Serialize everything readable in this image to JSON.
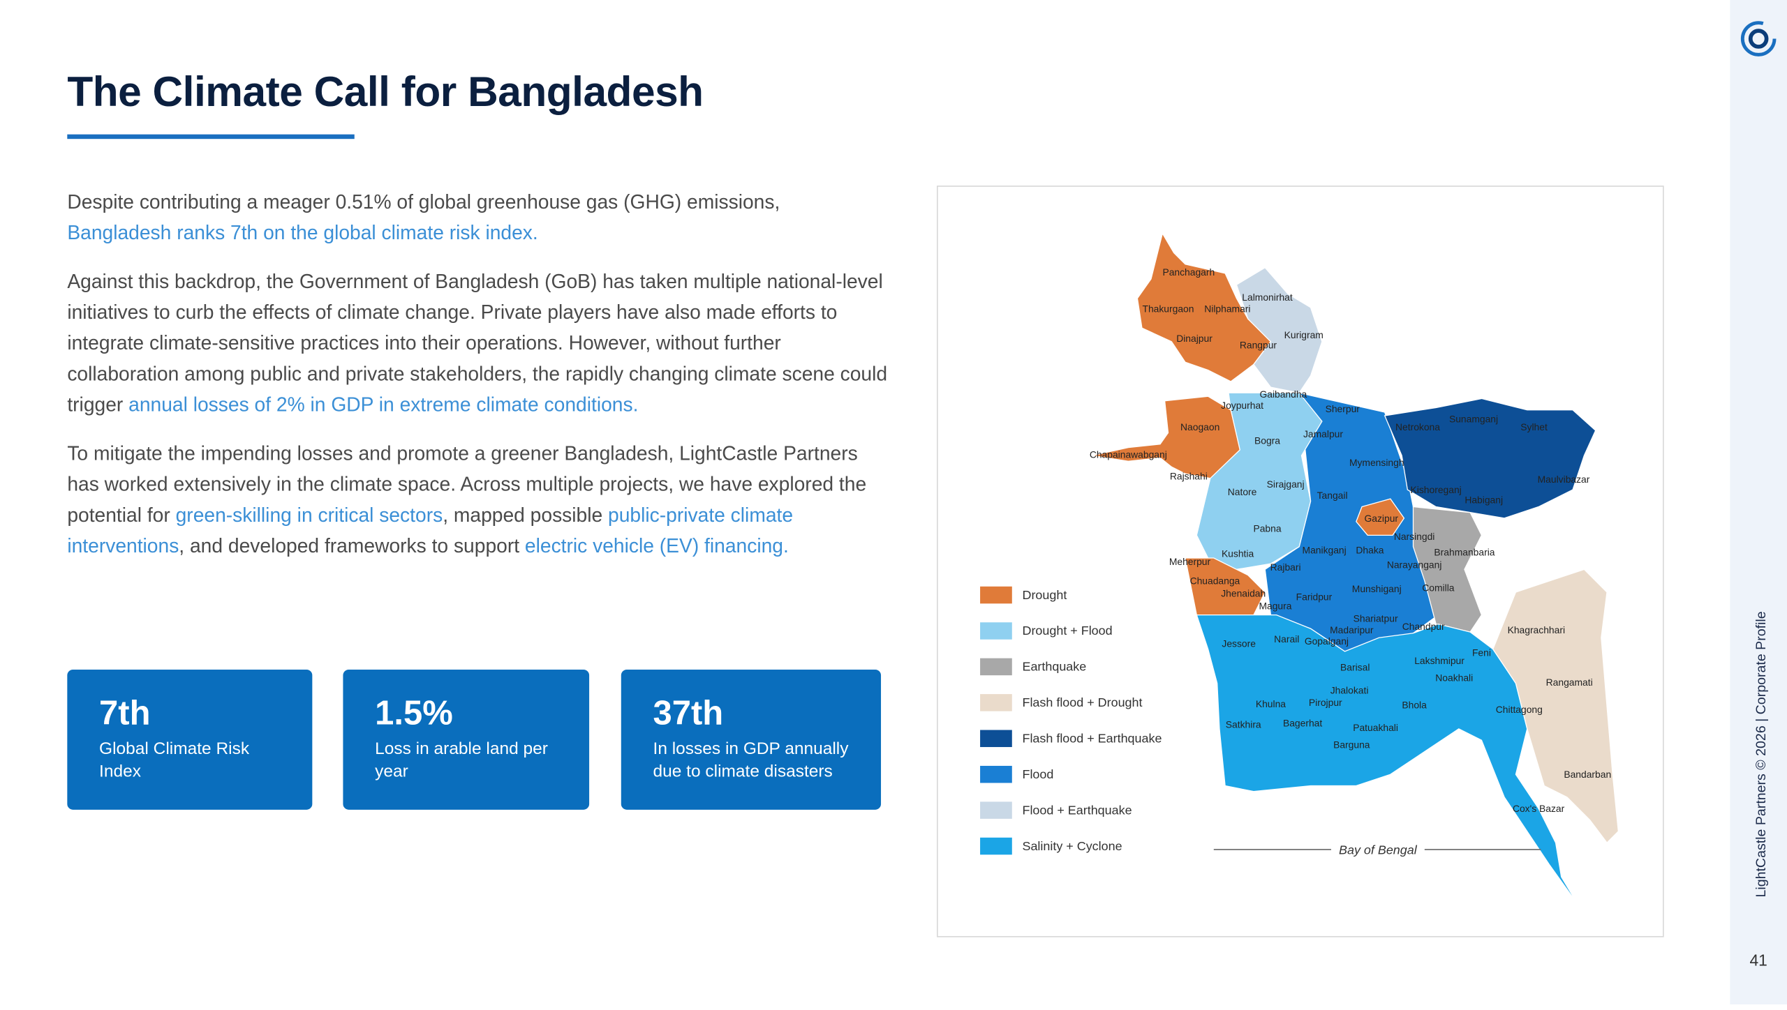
{
  "header": {
    "title": "The Climate Call for Bangladesh"
  },
  "body": {
    "paragraphs": [
      [
        "Despite contributing a meager 0.51% of global greenhouse gas (GHG) emissions, ",
        "Bangladesh ranks 7th on the global climate risk index."
      ],
      [
        "Against this backdrop, the Government of Bangladesh (GoB) has taken multiple national-level initiatives to curb the effects of climate change. Private players have also made efforts to integrate climate-sensitive practices into their operations. However, without further collaboration among public and private stakeholders, the rapidly changing climate scene could trigger ",
        "annual losses of 2% in GDP in extreme climate conditions."
      ],
      [
        "To mitigate the impending losses and promote a greener Bangladesh, LightCastle Partners has worked extensively in the climate space. Across multiple projects, we have explored the potential for ",
        "green-skilling in critical sectors",
        ", mapped possible ",
        "public-private climate interventions",
        ", and developed frameworks to support ",
        "electric vehicle (EV) financing."
      ]
    ]
  },
  "stats": [
    {
      "value": "7th",
      "label": "Global Climate Risk Index"
    },
    {
      "value": "1.5%",
      "label": "Loss in arable land per year"
    },
    {
      "value": "37th",
      "label": "In losses in GDP annually due to climate disasters"
    }
  ],
  "map": {
    "legend": [
      {
        "name": "Drought",
        "color": "#e07b39"
      },
      {
        "name": "Drought + Flood",
        "color": "#8fd0f0"
      },
      {
        "name": "Earthquake",
        "color": "#a8a8a8"
      },
      {
        "name": "Flash flood + Drought",
        "color": "#eadbcb"
      },
      {
        "name": "Flash flood + Earthquake",
        "color": "#0d4f96"
      },
      {
        "name": "Flood",
        "color": "#1a7fd4"
      },
      {
        "name": "Flood + Earthquake",
        "color": "#c9d8e6"
      },
      {
        "name": "Salinity + Cyclone",
        "color": "#1ba5e6"
      }
    ],
    "sea_label": "Bay of Bengal",
    "districts": [
      "Panchagarh",
      "Lalmonirhat",
      "Thakurgaon",
      "Nilphamari",
      "Kurigram",
      "Dinajpur",
      "Rangpur",
      "Gaibandha",
      "Joypurhat",
      "Sherpur",
      "Naogaon",
      "Jamalpur",
      "Bogra",
      "Netrokona",
      "Sunamganj",
      "Sylhet",
      "Chapainawabganj",
      "Mymensingh",
      "Rajshahi",
      "Sirajganj",
      "Maulvibazar",
      "Natore",
      "Tangail",
      "Kishoreganj",
      "Habiganj",
      "Gazipur",
      "Pabna",
      "Narsingdi",
      "Kushtia",
      "Manikganj",
      "Dhaka",
      "Brahmanbaria",
      "Meherpur",
      "Rajbari",
      "Narayanganj",
      "Chuadanga",
      "Comilla",
      "Jhenaidah",
      "Munshiganj",
      "Faridpur",
      "Magura",
      "Shariatpur",
      "Chandpur",
      "Madaripur",
      "Khagrachhari",
      "Jessore",
      "Narail",
      "Gopalganj",
      "Feni",
      "Lakshmipur",
      "Barisal",
      "Noakhali",
      "Rangamati",
      "Jhalokati",
      "Khulna",
      "Pirojpur",
      "Bhola",
      "Chittagong",
      "Satkhira",
      "Bagerhat",
      "Patuakhali",
      "Barguna",
      "Bandarban",
      "Cox's Bazar"
    ]
  },
  "sidebar": {
    "footer": "LightCastle Partners © 2026 | Corporate Profile",
    "page_number": "41"
  }
}
